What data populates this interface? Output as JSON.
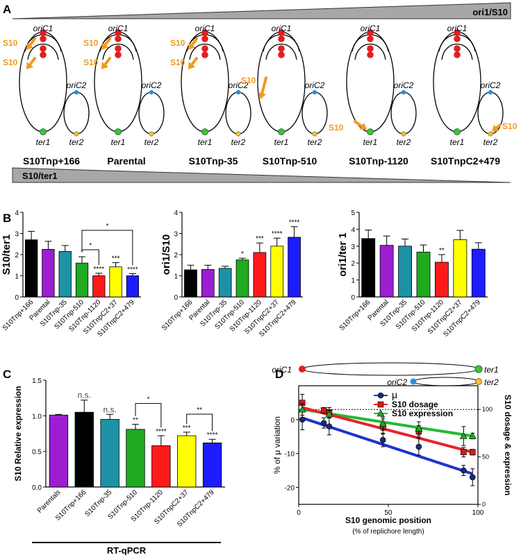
{
  "panels": {
    "A": {
      "letter": "A",
      "top_wedge_label": "ori1/S10",
      "bottom_wedge_label": "S10/ter1",
      "ori_c1_label": "oriC1",
      "ori_c2_label": "oriC2",
      "ter1_label": "ter1",
      "ter2_label": "ter2",
      "s10_label": "S10",
      "strains": [
        {
          "name": "S10Tnp+166",
          "s10_site": "ori-1"
        },
        {
          "name": "Parental",
          "s10_site": "ori-1"
        },
        {
          "name": "S10Tnp-35",
          "s10_site": "ori-1"
        },
        {
          "name": "S10Tnp-510",
          "s10_site": "mid-1"
        },
        {
          "name": "S10Tnp-1120",
          "s10_site": "ter-1"
        },
        {
          "name": "S10TnpC2+479",
          "s10_site": "ter-2"
        }
      ]
    },
    "B": {
      "letter": "B"
    },
    "C": {
      "letter": "C",
      "method_label": "RT-qPCR"
    },
    "D": {
      "letter": "D",
      "ori_c1_label": "oriC1",
      "ori_c2_label": "oriC2",
      "ter1_label": "ter1",
      "ter2_label": "ter2"
    }
  },
  "chart_data": [
    {
      "id": "B1",
      "type": "bar",
      "ylabel": "S10/ter1",
      "categories": [
        "S10Tnp+166",
        "Parental",
        "S10Tnp-35",
        "S10Tnp-510",
        "S10Tnp-1120",
        "S10TnpC2+37",
        "S10TnpC2+479"
      ],
      "values": [
        2.7,
        2.25,
        2.15,
        1.6,
        1.0,
        1.42,
        1.0
      ],
      "errors": [
        0.4,
        0.38,
        0.28,
        0.3,
        0.12,
        0.2,
        0.1
      ],
      "colors": [
        "#000000",
        "#9b1fd0",
        "#1d92a6",
        "#1faa1f",
        "#ff1a1a",
        "#ffff00",
        "#1c1cff"
      ],
      "significance": [
        "",
        "",
        "",
        "*",
        "****",
        "***",
        "****"
      ],
      "comparisons": [
        {
          "from": 3,
          "to": 4,
          "label": "*"
        },
        {
          "from": 3,
          "to": 6,
          "label": "*"
        }
      ],
      "ylim": [
        0,
        4
      ],
      "yticks": [
        0,
        1,
        2,
        3,
        4
      ]
    },
    {
      "id": "B2",
      "type": "bar",
      "ylabel": "ori1/S10",
      "categories": [
        "S10Tnp+166",
        "Parental",
        "S10Tnp-35",
        "S10Tnp-510",
        "S10Tnp-1120",
        "S10TnpC2+37",
        "S10TnpC2+479"
      ],
      "values": [
        1.28,
        1.3,
        1.35,
        1.75,
        2.1,
        2.4,
        2.82
      ],
      "errors": [
        0.22,
        0.2,
        0.1,
        0.08,
        0.45,
        0.38,
        0.5
      ],
      "colors": [
        "#000000",
        "#9b1fd0",
        "#1d92a6",
        "#1faa1f",
        "#ff1a1a",
        "#ffff00",
        "#1c1cff"
      ],
      "significance": [
        "",
        "",
        "",
        "*",
        "***",
        "****",
        "****"
      ],
      "ylim": [
        0,
        4
      ],
      "yticks": [
        0,
        1,
        2,
        3,
        4
      ]
    },
    {
      "id": "B3",
      "type": "bar",
      "ylabel": "ori1/ter 1",
      "categories": [
        "S10Tnp+166",
        "Parental",
        "S10Tnp-35",
        "S10Tnp-510",
        "S10Tnp-1120",
        "S10TnpC2+37",
        "S10TnpC2+479"
      ],
      "values": [
        3.45,
        3.05,
        3.0,
        2.65,
        2.05,
        3.38,
        2.82
      ],
      "errors": [
        0.5,
        0.55,
        0.42,
        0.42,
        0.45,
        0.55,
        0.38
      ],
      "colors": [
        "#000000",
        "#9b1fd0",
        "#1d92a6",
        "#1faa1f",
        "#ff1a1a",
        "#ffff00",
        "#1c1cff"
      ],
      "significance": [
        "",
        "",
        "",
        "",
        "**",
        "",
        ""
      ],
      "ylim": [
        0,
        5
      ],
      "yticks": [
        0,
        1,
        2,
        3,
        4,
        5
      ]
    },
    {
      "id": "C",
      "type": "bar",
      "ylabel": "S10 Relative expression",
      "categories": [
        "Parentals",
        "S10Tnp+166",
        "S10Tnp-35",
        "S10Tnp-510",
        "S10Tnp-1120",
        "S10TnpC2+37",
        "S10TnpC2+479"
      ],
      "values": [
        1.01,
        1.05,
        0.95,
        0.81,
        0.58,
        0.72,
        0.62
      ],
      "errors": [
        0.01,
        0.17,
        0.07,
        0.07,
        0.14,
        0.05,
        0.05
      ],
      "colors": [
        "#9b1fd0",
        "#000000",
        "#1d92a6",
        "#1faa1f",
        "#ff1a1a",
        "#ffff00",
        "#1c1cff"
      ],
      "significance": [
        "",
        "n.s.",
        "n.s.",
        "**",
        "****",
        "***",
        "****"
      ],
      "comparisons": [
        {
          "from": 3,
          "to": 4,
          "label": "*"
        },
        {
          "from": 5,
          "to": 6,
          "label": "**"
        }
      ],
      "ylim": [
        0,
        1.5
      ],
      "yticks": [
        0.0,
        0.5,
        1.0,
        1.5
      ],
      "ytick_labels": [
        "0.0",
        "0.5",
        "1.0",
        "1.5"
      ]
    },
    {
      "id": "D",
      "type": "scatter",
      "xlabel": "S10 genomic position",
      "xlabel_sub": "(% of replichore length)",
      "ylabel": "% of μ variation",
      "ylabel_right": "S10 dosage & expression",
      "xlim": [
        0,
        100
      ],
      "xticks": [
        0,
        50,
        100
      ],
      "ylim": [
        -25,
        10
      ],
      "yticks": [
        -20,
        -10,
        0
      ],
      "yticks_right": [
        0,
        50,
        100
      ],
      "right_ylim": [
        0,
        125
      ],
      "series": [
        {
          "name": "μ",
          "marker": "circle",
          "color": "#1a2a78",
          "fit_color": "#1f33cc",
          "axis": "left",
          "points": [
            [
              2,
              0
            ],
            [
              14,
              -1
            ],
            [
              17,
              -2
            ],
            [
              47,
              -6
            ],
            [
              67,
              -8
            ],
            [
              92,
              -15
            ],
            [
              97,
              -17
            ]
          ],
          "errors": [
            3,
            1.5,
            2.5,
            2,
            2.5,
            1.5,
            2.5
          ],
          "fit": [
            [
              2,
              0.5
            ],
            [
              97,
              -16
            ]
          ]
        },
        {
          "name": "S10 dosage",
          "marker": "square",
          "color": "#c81e1e",
          "fit_color": "#e8232b",
          "axis": "right",
          "points": [
            [
              2,
              107
            ],
            [
              14,
              99
            ],
            [
              17,
              97
            ],
            [
              47,
              82
            ],
            [
              67,
              77
            ],
            [
              92,
              55
            ],
            [
              97,
              55
            ]
          ],
          "errors": [
            9,
            3,
            5,
            8,
            6,
            5,
            3
          ],
          "fit": [
            [
              2,
              102
            ],
            [
              97,
              55
            ]
          ]
        },
        {
          "name": "S10 expression",
          "marker": "triangle",
          "color": "#1faa1f",
          "fit_color": "#22bb33",
          "axis": "right",
          "points": [
            [
              2,
              100
            ],
            [
              17,
              95
            ],
            [
              47,
              85
            ],
            [
              67,
              80
            ],
            [
              92,
              72
            ],
            [
              97,
              72
            ]
          ],
          "errors": [
            6,
            4,
            7,
            7,
            10,
            3
          ],
          "fit": [
            [
              2,
              100
            ],
            [
              97,
              72
            ]
          ]
        }
      ],
      "reference_line": {
        "axis": "right",
        "value": 100
      }
    }
  ]
}
